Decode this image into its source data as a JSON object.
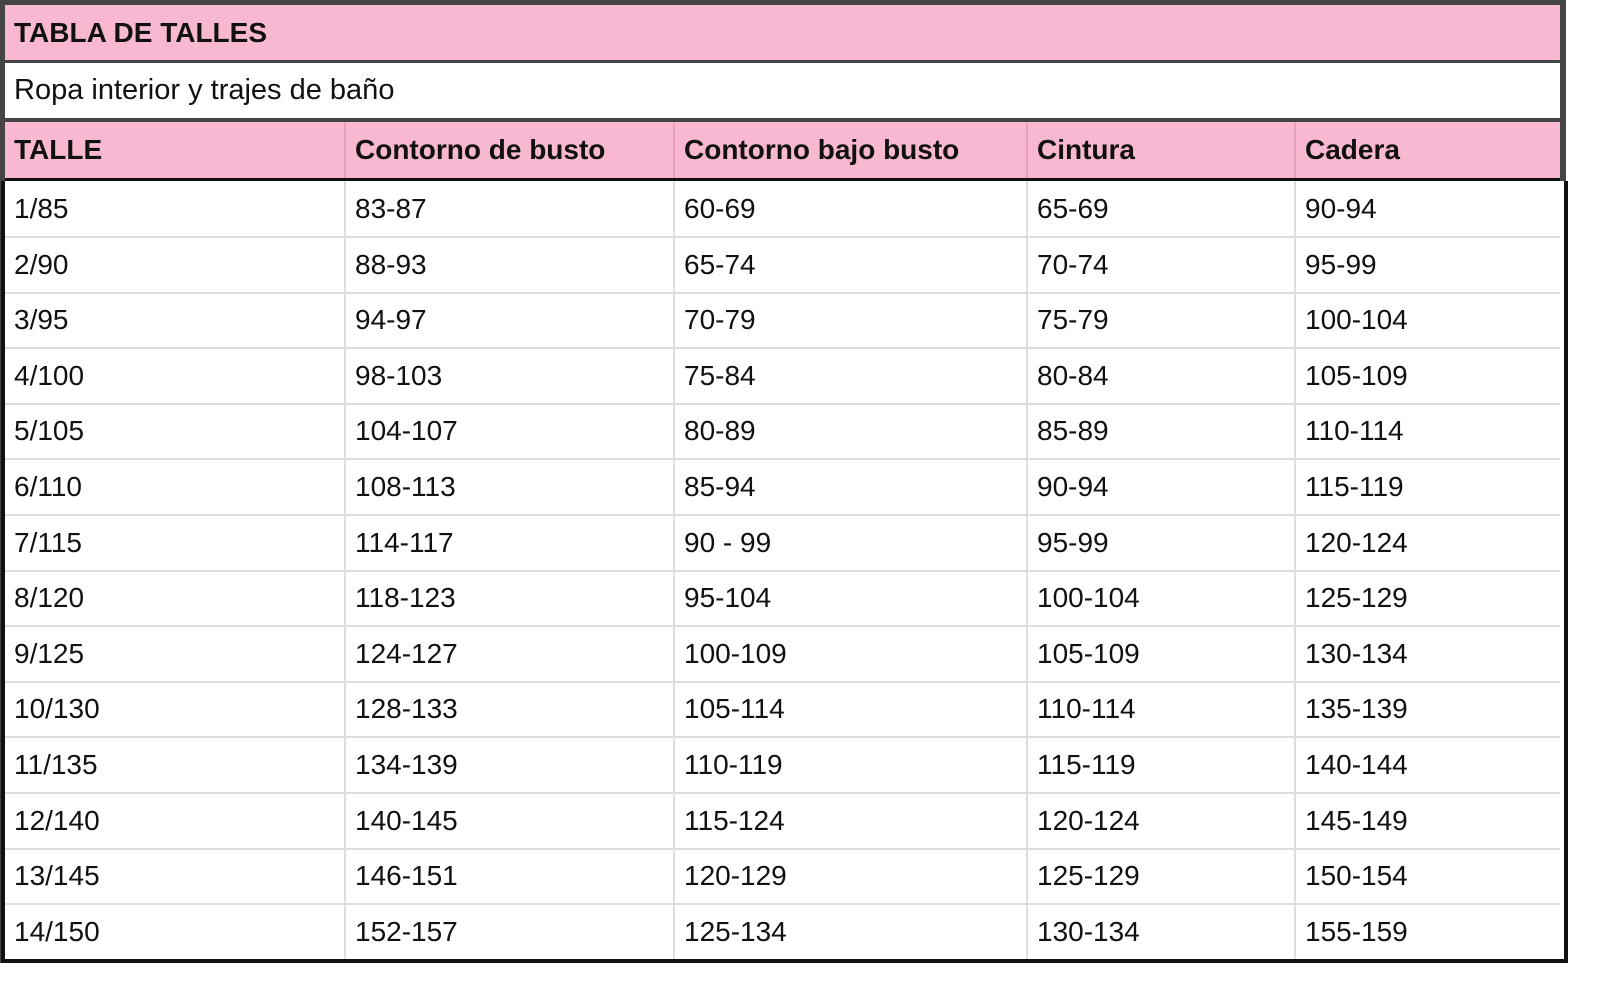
{
  "title": "TABLA DE TALLES",
  "subtitle": "Ropa interior y trajes de baño",
  "colors": {
    "header_bg": "#f9b8d2",
    "frame": "#444444"
  },
  "columns": [
    "TALLE",
    "Contorno de busto",
    "Contorno bajo busto",
    "Cintura",
    "Cadera"
  ],
  "rows": [
    [
      "1/85",
      "83-87",
      "60-69",
      "65-69",
      "90-94"
    ],
    [
      "2/90",
      "88-93",
      "65-74",
      "70-74",
      "95-99"
    ],
    [
      "3/95",
      "94-97",
      "70-79",
      "75-79",
      "100-104"
    ],
    [
      "4/100",
      "98-103",
      "75-84",
      "80-84",
      "105-109"
    ],
    [
      "5/105",
      "104-107",
      "80-89",
      "85-89",
      "110-114"
    ],
    [
      "6/110",
      "108-113",
      "85-94",
      "90-94",
      "115-119"
    ],
    [
      "7/115",
      "114-117",
      "90 - 99",
      "95-99",
      "120-124"
    ],
    [
      "8/120",
      "118-123",
      "95-104",
      "100-104",
      "125-129"
    ],
    [
      "9/125",
      "124-127",
      "100-109",
      "105-109",
      "130-134"
    ],
    [
      "10/130",
      "128-133",
      "105-114",
      "110-114",
      "135-139"
    ],
    [
      "11/135",
      "134-139",
      "110-119",
      "115-119",
      "140-144"
    ],
    [
      "12/140",
      "140-145",
      "115-124",
      "120-124",
      "145-149"
    ],
    [
      "13/145",
      "146-151",
      "120-129",
      "125-129",
      "150-154"
    ],
    [
      "14/150",
      "152-157",
      "125-134",
      "130-134",
      "155-159"
    ]
  ]
}
